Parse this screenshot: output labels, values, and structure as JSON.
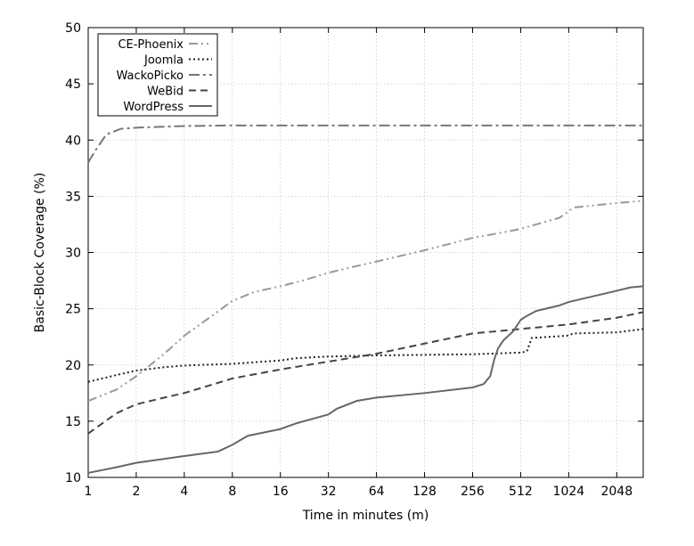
{
  "chart_data": {
    "type": "line",
    "xlabel": "Time in minutes (m)",
    "ylabel": "Basic-Block Coverage (%)",
    "x_scale": "log2",
    "xlim": [
      1,
      3000
    ],
    "ylim": [
      10,
      50
    ],
    "x_ticks": [
      1,
      2,
      4,
      8,
      16,
      32,
      64,
      128,
      256,
      512,
      1024,
      2048
    ],
    "x_tick_labels": [
      "1",
      "2",
      "4",
      "8",
      "16",
      "32",
      "64",
      "128",
      "256",
      "512",
      "1024",
      "2048"
    ],
    "y_ticks": [
      10,
      15,
      20,
      25,
      30,
      35,
      40,
      45,
      50
    ],
    "y_tick_labels": [
      "10",
      "15",
      "20",
      "25",
      "30",
      "35",
      "40",
      "45",
      "50"
    ],
    "grid": true,
    "legend_position": "top-left",
    "series": [
      {
        "name": "CE-Phoenix",
        "color": "#999999",
        "dash": "dash-dot-dot",
        "points": [
          [
            1,
            16.8
          ],
          [
            1.5,
            17.8
          ],
          [
            2,
            19.0
          ],
          [
            3,
            21.0
          ],
          [
            4,
            22.6
          ],
          [
            6,
            24.4
          ],
          [
            8,
            25.7
          ],
          [
            11,
            26.5
          ],
          [
            16,
            27.0
          ],
          [
            22,
            27.5
          ],
          [
            32,
            28.2
          ],
          [
            45,
            28.7
          ],
          [
            64,
            29.2
          ],
          [
            128,
            30.2
          ],
          [
            256,
            31.3
          ],
          [
            400,
            31.8
          ],
          [
            512,
            32.1
          ],
          [
            900,
            33.1
          ],
          [
            1100,
            34.0
          ],
          [
            2048,
            34.4
          ],
          [
            3000,
            34.6
          ]
        ]
      },
      {
        "name": "Joomla",
        "color": "#222222",
        "dash": "dotted",
        "points": [
          [
            1,
            18.5
          ],
          [
            1.5,
            19.1
          ],
          [
            2,
            19.5
          ],
          [
            3,
            19.8
          ],
          [
            4,
            19.95
          ],
          [
            8,
            20.1
          ],
          [
            16,
            20.4
          ],
          [
            20,
            20.6
          ],
          [
            32,
            20.75
          ],
          [
            64,
            20.85
          ],
          [
            128,
            20.9
          ],
          [
            256,
            20.95
          ],
          [
            512,
            21.1
          ],
          [
            560,
            21.2
          ],
          [
            600,
            22.4
          ],
          [
            1000,
            22.6
          ],
          [
            1100,
            22.8
          ],
          [
            2048,
            22.9
          ],
          [
            3000,
            23.2
          ]
        ]
      },
      {
        "name": "WackoPicko",
        "color": "#777777",
        "dash": "dash-dot",
        "points": [
          [
            1,
            38.0
          ],
          [
            1.1,
            39.0
          ],
          [
            1.3,
            40.5
          ],
          [
            1.6,
            41.0
          ],
          [
            2,
            41.1
          ],
          [
            4,
            41.25
          ],
          [
            8,
            41.3
          ],
          [
            3000,
            41.3
          ]
        ]
      },
      {
        "name": "WeBid",
        "color": "#444444",
        "dash": "dashed",
        "points": [
          [
            1,
            13.9
          ],
          [
            1.5,
            15.7
          ],
          [
            2,
            16.5
          ],
          [
            3,
            17.1
          ],
          [
            4,
            17.5
          ],
          [
            8,
            18.8
          ],
          [
            16,
            19.6
          ],
          [
            32,
            20.3
          ],
          [
            64,
            21.0
          ],
          [
            128,
            21.9
          ],
          [
            256,
            22.8
          ],
          [
            512,
            23.2
          ],
          [
            1024,
            23.6
          ],
          [
            2048,
            24.2
          ],
          [
            3000,
            24.7
          ]
        ]
      },
      {
        "name": "WordPress",
        "color": "#666666",
        "dash": "solid",
        "points": [
          [
            1,
            10.4
          ],
          [
            1.5,
            10.9
          ],
          [
            2,
            11.3
          ],
          [
            4,
            11.9
          ],
          [
            6.5,
            12.3
          ],
          [
            8,
            12.9
          ],
          [
            10,
            13.7
          ],
          [
            16,
            14.3
          ],
          [
            20,
            14.8
          ],
          [
            32,
            15.6
          ],
          [
            36,
            16.1
          ],
          [
            48,
            16.8
          ],
          [
            64,
            17.1
          ],
          [
            128,
            17.5
          ],
          [
            256,
            18.0
          ],
          [
            300,
            18.3
          ],
          [
            330,
            19.0
          ],
          [
            350,
            20.5
          ],
          [
            370,
            21.5
          ],
          [
            400,
            22.2
          ],
          [
            460,
            23.0
          ],
          [
            512,
            24.0
          ],
          [
            550,
            24.3
          ],
          [
            640,
            24.8
          ],
          [
            900,
            25.3
          ],
          [
            1024,
            25.6
          ],
          [
            2048,
            26.6
          ],
          [
            2500,
            26.9
          ],
          [
            3000,
            27.0
          ]
        ]
      }
    ]
  }
}
